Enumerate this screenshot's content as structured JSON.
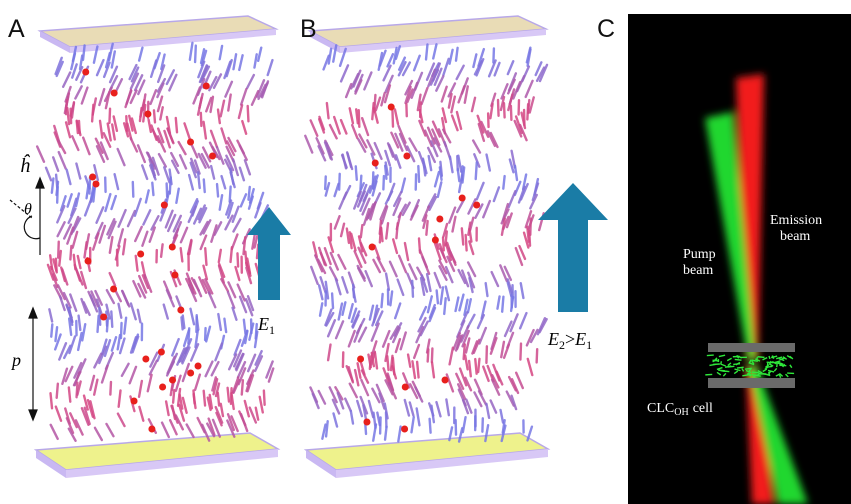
{
  "panels": [
    {
      "label": "A"
    },
    {
      "label": "B"
    },
    {
      "label": "C"
    }
  ],
  "annotations": {
    "helix_axis": "ĥ",
    "tilt_angle": "θ",
    "pitch": "p",
    "field_a": {
      "symbol": "E",
      "subscript": "1"
    },
    "field_b": {
      "left": "E",
      "left_subscript": "2",
      "relation": ">",
      "right": "E",
      "right_subscript": "1"
    },
    "pump_beam": [
      "Pump",
      "beam"
    ],
    "emission_beam": [
      "Emission",
      "beam"
    ],
    "cell": {
      "text": "CLC",
      "subscript": "OH",
      "suffix": "cell"
    }
  }
}
